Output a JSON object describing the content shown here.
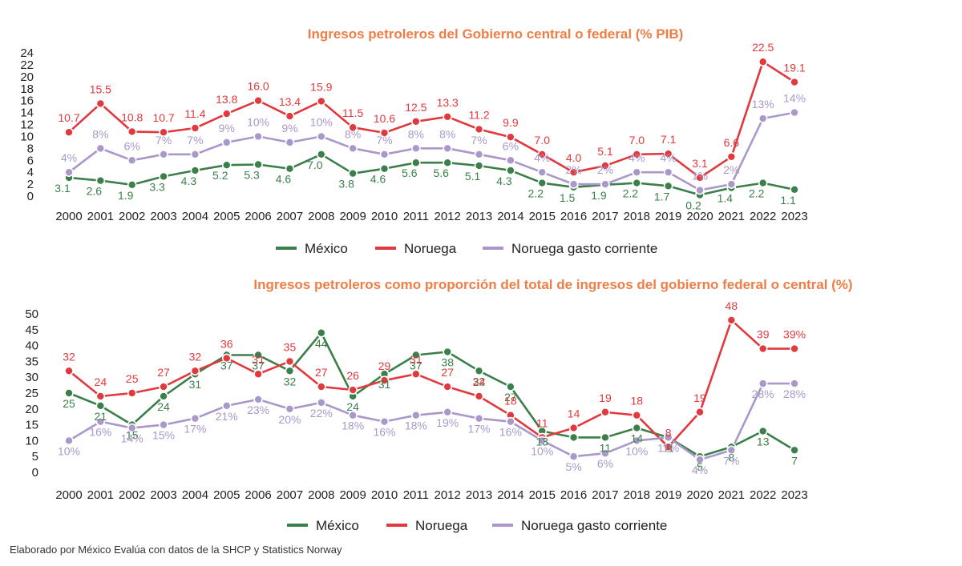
{
  "colors": {
    "mexico": "#3b7f4a",
    "noruega": "#e0393e",
    "gasto": "#a998c9",
    "title": "#ee7e46"
  },
  "source": "Elaborado por México Evalúa con datos de la SHCP y Statistics Norway",
  "chart_data": [
    {
      "type": "line",
      "title": "Ingresos petroleros del Gobierno central o federal (% PIB)",
      "xlabel": "",
      "ylabel": "",
      "ylim": [
        0,
        24
      ],
      "yticks": [
        0,
        2,
        4,
        6,
        8,
        10,
        12,
        14,
        16,
        18,
        20,
        22,
        24
      ],
      "legend_position": "bottom",
      "categories": [
        "2000",
        "2001",
        "2002",
        "2003",
        "2004",
        "2005",
        "2006",
        "2007",
        "2008",
        "2009",
        "2010",
        "2011",
        "2012",
        "2013",
        "2014",
        "2015",
        "2016",
        "2017",
        "2018",
        "2019",
        "2020",
        "2021",
        "2022",
        "2023"
      ],
      "series": [
        {
          "name": "México",
          "color_key": "mexico",
          "values": [
            3.1,
            2.6,
            1.9,
            3.3,
            4.3,
            5.2,
            5.3,
            4.6,
            7.0,
            3.8,
            4.6,
            5.6,
            5.6,
            5.1,
            4.3,
            2.2,
            1.5,
            1.9,
            2.2,
            1.7,
            0.2,
            1.4,
            2.2,
            1.1
          ],
          "labels": [
            "3.1",
            "2.6",
            "1.9",
            "3.3",
            "4.3",
            "5.2",
            "5.3",
            "4.6",
            "7.0",
            "3.8",
            "4.6",
            "5.6",
            "5.6",
            "5.1",
            "4.3",
            "2.2",
            "1.5",
            "1.9",
            "2.2",
            "1.7",
            "0.2",
            "1.4",
            "2.2",
            "1.1"
          ]
        },
        {
          "name": "Noruega",
          "color_key": "noruega",
          "values": [
            10.7,
            15.5,
            10.8,
            10.7,
            11.4,
            13.8,
            16.0,
            13.4,
            15.9,
            11.5,
            10.6,
            12.5,
            13.3,
            11.2,
            9.9,
            7.0,
            4.0,
            5.1,
            7.0,
            7.1,
            3.1,
            6.6,
            22.5,
            19.1
          ],
          "labels": [
            "10.7",
            "15.5",
            "10.8",
            "10.7",
            "11.4",
            "13.8",
            "16.0",
            "13.4",
            "15.9",
            "11.5",
            "10.6",
            "12.5",
            "13.3",
            "11.2",
            "9.9",
            "7.0",
            "4.0",
            "5.1",
            "7.0",
            "7.1",
            "3.1",
            "6.6",
            "22.5",
            "19.1"
          ]
        },
        {
          "name": "Noruega gasto corriente",
          "color_key": "gasto",
          "values": [
            4,
            8,
            6,
            7,
            7,
            9,
            10,
            9,
            10,
            8,
            7,
            8,
            8,
            7,
            6,
            4,
            2,
            2,
            4,
            4,
            1,
            2,
            13,
            14
          ],
          "labels": [
            "4%",
            "8%",
            "6%",
            "7%",
            "7%",
            "9%",
            "10%",
            "9%",
            "10%",
            "8%",
            "7%",
            "8%",
            "8%",
            "7%",
            "6%",
            "4%",
            "2%",
            "2%",
            "4%",
            "4%",
            "1%",
            "2%",
            "13%",
            "14%"
          ]
        }
      ]
    },
    {
      "type": "line",
      "title": "Ingresos petroleros como proporción del total de ingresos del gobierno federal o central (%)",
      "xlabel": "",
      "ylabel": "",
      "ylim": [
        0,
        50
      ],
      "yticks": [
        0,
        5,
        10,
        15,
        20,
        25,
        30,
        35,
        40,
        45,
        50
      ],
      "legend_position": "bottom",
      "categories": [
        "2000",
        "2001",
        "2002",
        "2003",
        "2004",
        "2005",
        "2006",
        "2007",
        "2008",
        "2009",
        "2010",
        "2011",
        "2012",
        "2013",
        "2014",
        "2015",
        "2016",
        "2017",
        "2018",
        "2019",
        "2020",
        "2021",
        "2022",
        "2023"
      ],
      "series": [
        {
          "name": "México",
          "color_key": "mexico",
          "values": [
            25,
            21,
            15,
            24,
            31,
            37,
            37,
            32,
            44,
            24,
            31,
            37,
            38,
            32,
            27,
            13,
            11,
            11,
            14,
            11,
            5,
            8,
            13,
            7
          ],
          "labels": [
            "25",
            "21",
            "15",
            "24",
            "31",
            "37",
            "37",
            "32",
            "44",
            "24",
            "31",
            "37",
            "38",
            "32",
            "27",
            "13",
            "",
            "11",
            "14",
            "11",
            "5",
            "8",
            "13",
            "7"
          ]
        },
        {
          "name": "Noruega",
          "color_key": "noruega",
          "values": [
            32,
            24,
            25,
            27,
            32,
            36,
            31,
            35,
            27,
            26,
            29,
            31,
            27,
            24,
            18,
            11,
            14,
            19,
            18,
            8,
            19,
            48,
            39,
            39
          ],
          "labels": [
            "32",
            "24",
            "25",
            "27",
            "32",
            "36",
            "31",
            "35",
            "27",
            "26",
            "29",
            "31",
            "27",
            "24",
            "18",
            "11",
            "14",
            "19",
            "18",
            "8",
            "19",
            "48",
            "39",
            "39%"
          ]
        },
        {
          "name": "Noruega gasto corriente",
          "color_key": "gasto",
          "values": [
            10,
            16,
            14,
            15,
            17,
            21,
            23,
            20,
            22,
            18,
            16,
            18,
            19,
            17,
            16,
            10,
            5,
            6,
            10,
            11,
            4,
            7,
            28,
            28
          ],
          "labels": [
            "10%",
            "16%",
            "14%",
            "15%",
            "17%",
            "21%",
            "23%",
            "20%",
            "22%",
            "18%",
            "16%",
            "18%",
            "19%",
            "17%",
            "16%",
            "10%",
            "5%",
            "6%",
            "10%",
            "11%",
            "4%",
            "7%",
            "28%",
            "28%"
          ]
        }
      ]
    }
  ]
}
